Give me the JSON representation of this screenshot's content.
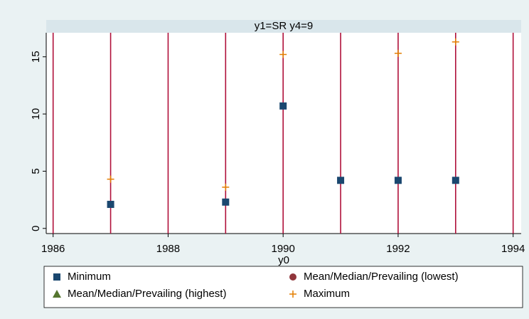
{
  "chart_data": {
    "type": "scatter",
    "title": "y1=SR y4=9",
    "x_label": "y0",
    "xlim": [
      1985.88,
      1994.14
    ],
    "xticks": [
      1986,
      1988,
      1990,
      1992,
      1994
    ],
    "ylim": [
      -0.45,
      17.1
    ],
    "yticks": [
      0,
      5,
      10,
      15
    ],
    "xlines": [
      1986,
      1987,
      1988,
      1989,
      1990,
      1991,
      1992,
      1993,
      1994
    ],
    "xline_color": "#b0103a",
    "series": [
      {
        "name": "Minimum",
        "color": "#1a476f",
        "marker": "square",
        "x": [
          1987,
          1989,
          1990,
          1991,
          1992,
          1993
        ],
        "values": [
          2.1,
          2.3,
          10.7,
          4.2,
          4.2,
          4.2
        ]
      },
      {
        "name": "Mean/Median/Prevailing (lowest)",
        "color": "#90353b",
        "marker": "circle",
        "x": [],
        "values": []
      },
      {
        "name": "Mean/Median/Prevailing (highest)",
        "color": "#55752f",
        "marker": "triangle",
        "x": [],
        "values": []
      },
      {
        "name": "Maximum",
        "color": "#e37e00",
        "marker": "plus",
        "x": [
          1987,
          1989,
          1990,
          1992,
          1993
        ],
        "values": [
          4.3,
          3.6,
          15.2,
          15.3,
          16.3
        ]
      }
    ]
  }
}
